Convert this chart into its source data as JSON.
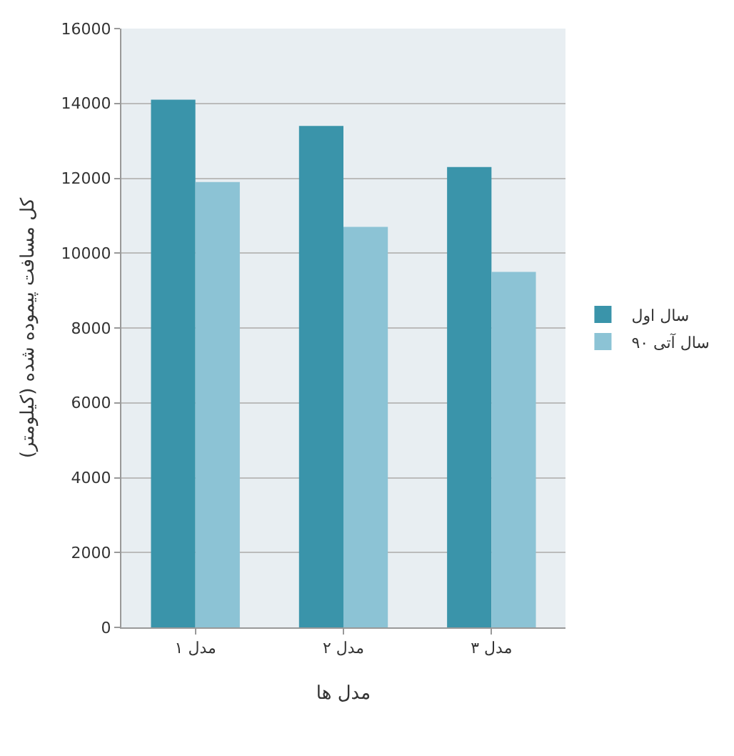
{
  "chart_data": {
    "type": "bar",
    "xlabel": "مدل ها",
    "ylabel": "کل مسافت پیموده شده (کیلومتر)",
    "categories": [
      "مدل ۱",
      "مدل ۲",
      "مدل ۳"
    ],
    "series": [
      {
        "name": "سال اول",
        "color": "#3a94aa",
        "values": [
          14100,
          13400,
          12300
        ]
      },
      {
        "name": "۹۰ سال آتی",
        "color": "#8cc3d5",
        "values": [
          11900,
          10700,
          9500
        ]
      }
    ],
    "ylim": [
      0,
      16000
    ],
    "yticks": [
      0,
      2000,
      4000,
      6000,
      8000,
      10000,
      12000,
      14000,
      16000
    ],
    "grid": "y",
    "legend": "right"
  }
}
